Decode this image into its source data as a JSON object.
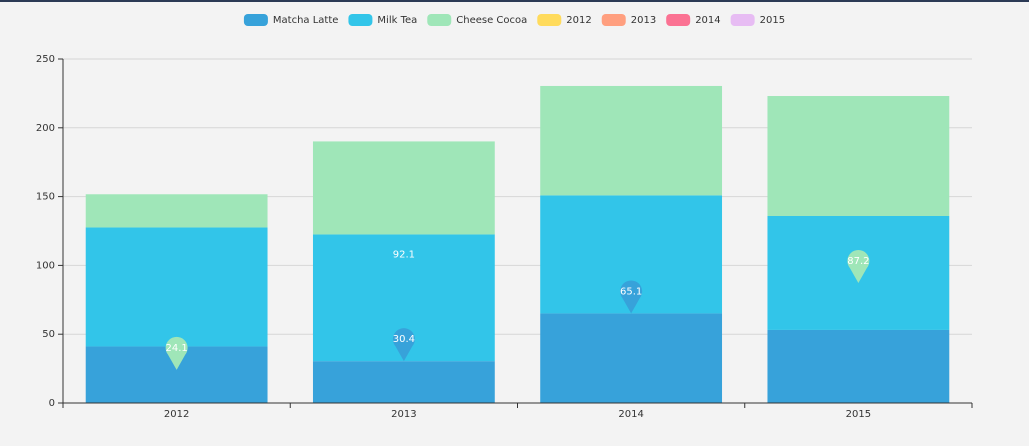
{
  "chart_data": {
    "type": "bar",
    "stacked": true,
    "categories": [
      "2012",
      "2013",
      "2014",
      "2015"
    ],
    "category_colors": [
      "#ffdb5c",
      "#ff9f7f",
      "#fb7293",
      "#e7bcf3"
    ],
    "series": [
      {
        "name": "Matcha Latte",
        "color": "#37a2da",
        "values": [
          41.1,
          30.4,
          65.1,
          53.1
        ],
        "markers": [
          "min",
          "max"
        ],
        "marker_symbol": "pin"
      },
      {
        "name": "Milk Tea",
        "color": "#32c5e9",
        "values": [
          86.5,
          92.1,
          85.8,
          82.8
        ],
        "markers": [
          "max"
        ],
        "marker_symbol": "none"
      },
      {
        "name": "Cheese Cocoa",
        "color": "#9fe6b8",
        "values": [
          24.1,
          67.6,
          79.5,
          87.2
        ],
        "markers": [
          "min",
          "max"
        ],
        "marker_symbol": "pin"
      }
    ],
    "ylim": [
      0,
      250
    ],
    "yticks": [
      0,
      50,
      100,
      150,
      200,
      250
    ],
    "grid": true
  }
}
